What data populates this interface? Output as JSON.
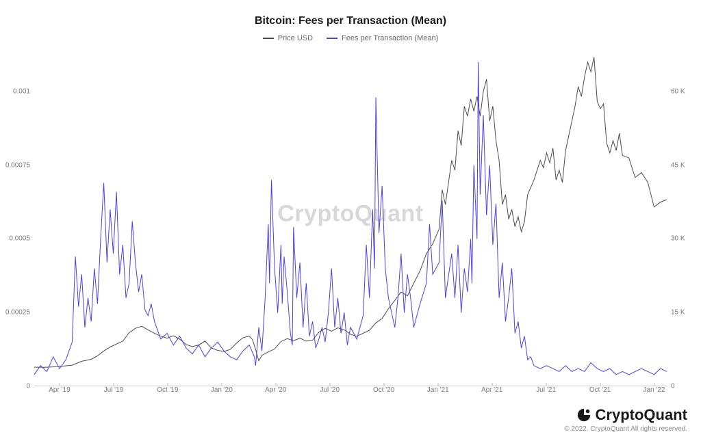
{
  "title": {
    "text": "Bitcoin: Fees per Transaction (Mean)",
    "fontsize": 16,
    "color": "#1a1a1a"
  },
  "watermark": {
    "text": "CryptoQuant",
    "color": "#d8d8d8",
    "fontsize": 34
  },
  "legend": {
    "items": [
      {
        "label": "Price USD",
        "color": "#4a4a4a"
      },
      {
        "label": "Fees per Transaction (Mean)",
        "color": "#4a3fe8"
      }
    ],
    "fontsize": 11
  },
  "chart": {
    "type": "line",
    "background_color": "#ffffff",
    "grid_color": "#eeeeee",
    "axis_color": "#cccccc",
    "tick_fontsize": 10,
    "tick_color": "#777777",
    "x_axis": {
      "labels": [
        "Apr '19",
        "Jul '19",
        "Oct '19",
        "Jan '20",
        "Apr '20",
        "Jul '20",
        "Oct '20",
        "Jan '21",
        "Apr '21",
        "Jul '21",
        "Oct '21",
        "Jan '22"
      ]
    },
    "y_left": {
      "min": 0,
      "max": 0.001125,
      "ticks": [
        0,
        0.00025,
        0.0005,
        0.00075,
        0.001
      ],
      "labels": [
        "0",
        "0.00025",
        "0.0005",
        "0.00075",
        "0.001"
      ]
    },
    "y_right": {
      "min": 0,
      "max": 67500,
      "ticks": [
        0,
        15000,
        30000,
        45000,
        60000
      ],
      "labels": [
        "0",
        "15 K",
        "30 K",
        "45 K",
        "60 K"
      ]
    },
    "series": [
      {
        "name": "price_usd",
        "axis": "right",
        "color": "#4a4a4a",
        "line_width": 1.0,
        "data": [
          [
            0.0,
            3900
          ],
          [
            0.015,
            3850
          ],
          [
            0.03,
            3950
          ],
          [
            0.045,
            4100
          ],
          [
            0.06,
            4300
          ],
          [
            0.075,
            5100
          ],
          [
            0.09,
            5500
          ],
          [
            0.1,
            6200
          ],
          [
            0.11,
            7200
          ],
          [
            0.12,
            8000
          ],
          [
            0.13,
            8600
          ],
          [
            0.14,
            9200
          ],
          [
            0.15,
            10900
          ],
          [
            0.16,
            11800
          ],
          [
            0.17,
            12200
          ],
          [
            0.18,
            11500
          ],
          [
            0.19,
            10800
          ],
          [
            0.2,
            10200
          ],
          [
            0.21,
            9800
          ],
          [
            0.22,
            10300
          ],
          [
            0.23,
            9600
          ],
          [
            0.24,
            8500
          ],
          [
            0.25,
            8100
          ],
          [
            0.26,
            8400
          ],
          [
            0.27,
            9200
          ],
          [
            0.28,
            7800
          ],
          [
            0.29,
            7300
          ],
          [
            0.3,
            7100
          ],
          [
            0.31,
            7500
          ],
          [
            0.32,
            8800
          ],
          [
            0.33,
            9900
          ],
          [
            0.34,
            10200
          ],
          [
            0.345,
            9500
          ],
          [
            0.35,
            7500
          ],
          [
            0.355,
            5200
          ],
          [
            0.36,
            6300
          ],
          [
            0.37,
            7000
          ],
          [
            0.38,
            7600
          ],
          [
            0.39,
            9100
          ],
          [
            0.4,
            9700
          ],
          [
            0.41,
            9300
          ],
          [
            0.42,
            9800
          ],
          [
            0.43,
            9200
          ],
          [
            0.44,
            9400
          ],
          [
            0.45,
            11000
          ],
          [
            0.46,
            11800
          ],
          [
            0.47,
            11200
          ],
          [
            0.48,
            11900
          ],
          [
            0.49,
            11500
          ],
          [
            0.5,
            10600
          ],
          [
            0.51,
            10200
          ],
          [
            0.52,
            10800
          ],
          [
            0.53,
            11400
          ],
          [
            0.54,
            12900
          ],
          [
            0.55,
            13800
          ],
          [
            0.56,
            15800
          ],
          [
            0.57,
            17500
          ],
          [
            0.58,
            19200
          ],
          [
            0.59,
            18400
          ],
          [
            0.6,
            21000
          ],
          [
            0.61,
            23500
          ],
          [
            0.62,
            27000
          ],
          [
            0.63,
            29000
          ],
          [
            0.64,
            32000
          ],
          [
            0.645,
            40000
          ],
          [
            0.65,
            37000
          ],
          [
            0.66,
            46000
          ],
          [
            0.665,
            44000
          ],
          [
            0.67,
            52000
          ],
          [
            0.675,
            49000
          ],
          [
            0.68,
            57000
          ],
          [
            0.685,
            55000
          ],
          [
            0.69,
            58500
          ],
          [
            0.695,
            56000
          ],
          [
            0.7,
            59000
          ],
          [
            0.705,
            55000
          ],
          [
            0.71,
            60000
          ],
          [
            0.715,
            62500
          ],
          [
            0.72,
            54000
          ],
          [
            0.725,
            57000
          ],
          [
            0.73,
            50000
          ],
          [
            0.735,
            46000
          ],
          [
            0.74,
            37000
          ],
          [
            0.745,
            39000
          ],
          [
            0.75,
            34000
          ],
          [
            0.755,
            36000
          ],
          [
            0.76,
            32500
          ],
          [
            0.765,
            34500
          ],
          [
            0.77,
            31500
          ],
          [
            0.775,
            33500
          ],
          [
            0.78,
            39000
          ],
          [
            0.79,
            42000
          ],
          [
            0.8,
            46000
          ],
          [
            0.805,
            44500
          ],
          [
            0.81,
            47500
          ],
          [
            0.815,
            45500
          ],
          [
            0.82,
            48500
          ],
          [
            0.825,
            42000
          ],
          [
            0.83,
            44000
          ],
          [
            0.835,
            41500
          ],
          [
            0.84,
            48000
          ],
          [
            0.85,
            54000
          ],
          [
            0.855,
            57000
          ],
          [
            0.86,
            61000
          ],
          [
            0.865,
            59000
          ],
          [
            0.87,
            63000
          ],
          [
            0.875,
            66000
          ],
          [
            0.88,
            64000
          ],
          [
            0.885,
            67000
          ],
          [
            0.89,
            58000
          ],
          [
            0.895,
            56500
          ],
          [
            0.9,
            57500
          ],
          [
            0.905,
            49500
          ],
          [
            0.91,
            47500
          ],
          [
            0.915,
            50000
          ],
          [
            0.92,
            48000
          ],
          [
            0.925,
            51500
          ],
          [
            0.93,
            47000
          ],
          [
            0.94,
            46500
          ],
          [
            0.95,
            42500
          ],
          [
            0.96,
            43500
          ],
          [
            0.97,
            41500
          ],
          [
            0.98,
            36500
          ],
          [
            0.99,
            37500
          ],
          [
            1.0,
            38000
          ]
        ]
      },
      {
        "name": "fees_mean",
        "axis": "left",
        "color": "#4a3fe8",
        "line_width": 1.0,
        "data": [
          [
            0.0,
            4e-05
          ],
          [
            0.01,
            7e-05
          ],
          [
            0.02,
            5e-05
          ],
          [
            0.03,
            0.0001
          ],
          [
            0.04,
            6e-05
          ],
          [
            0.05,
            9e-05
          ],
          [
            0.06,
            0.00015
          ],
          [
            0.065,
            0.00044
          ],
          [
            0.07,
            0.00027
          ],
          [
            0.075,
            0.00038
          ],
          [
            0.08,
            0.0002
          ],
          [
            0.085,
            0.0003
          ],
          [
            0.09,
            0.00022
          ],
          [
            0.095,
            0.0004
          ],
          [
            0.1,
            0.00028
          ],
          [
            0.105,
            0.0005
          ],
          [
            0.11,
            0.00069
          ],
          [
            0.115,
            0.00042
          ],
          [
            0.12,
            0.0006
          ],
          [
            0.125,
            0.00045
          ],
          [
            0.13,
            0.00066
          ],
          [
            0.135,
            0.00038
          ],
          [
            0.14,
            0.00048
          ],
          [
            0.145,
            0.0003
          ],
          [
            0.15,
            0.00035
          ],
          [
            0.155,
            0.00056
          ],
          [
            0.16,
            0.00042
          ],
          [
            0.165,
            0.00032
          ],
          [
            0.17,
            0.00038
          ],
          [
            0.175,
            0.00026
          ],
          [
            0.18,
            0.00024
          ],
          [
            0.185,
            0.00028
          ],
          [
            0.19,
            0.00022
          ],
          [
            0.195,
            0.00019
          ],
          [
            0.2,
            0.00016
          ],
          [
            0.21,
            0.00018
          ],
          [
            0.22,
            0.00014
          ],
          [
            0.23,
            0.00017
          ],
          [
            0.24,
            0.00013
          ],
          [
            0.25,
            0.00011
          ],
          [
            0.26,
            0.00014
          ],
          [
            0.27,
            0.0001
          ],
          [
            0.28,
            0.00013
          ],
          [
            0.29,
            0.00015
          ],
          [
            0.3,
            0.00012
          ],
          [
            0.31,
            0.0001
          ],
          [
            0.32,
            9e-05
          ],
          [
            0.33,
            0.00012
          ],
          [
            0.34,
            0.00014
          ],
          [
            0.348,
            0.0001
          ],
          [
            0.35,
            7e-05
          ],
          [
            0.355,
            0.0002
          ],
          [
            0.36,
            0.00012
          ],
          [
            0.365,
            0.0003
          ],
          [
            0.37,
            0.00055
          ],
          [
            0.372,
            0.00035
          ],
          [
            0.375,
            0.0007
          ],
          [
            0.38,
            0.0004
          ],
          [
            0.385,
            0.00025
          ],
          [
            0.39,
            0.00048
          ],
          [
            0.392,
            0.00028
          ],
          [
            0.395,
            0.00044
          ],
          [
            0.4,
            0.00032
          ],
          [
            0.405,
            0.00018
          ],
          [
            0.408,
            0.00014
          ],
          [
            0.41,
            0.00054
          ],
          [
            0.415,
            0.0003
          ],
          [
            0.42,
            0.00042
          ],
          [
            0.425,
            0.0002
          ],
          [
            0.43,
            0.00035
          ],
          [
            0.435,
            0.00017
          ],
          [
            0.44,
            0.00022
          ],
          [
            0.445,
            0.00013
          ],
          [
            0.45,
            0.00016
          ],
          [
            0.455,
            0.0002
          ],
          [
            0.46,
            0.00015
          ],
          [
            0.465,
            0.00025
          ],
          [
            0.47,
            0.0004
          ],
          [
            0.475,
            0.0002
          ],
          [
            0.48,
            0.0003
          ],
          [
            0.485,
            0.00018
          ],
          [
            0.49,
            0.00025
          ],
          [
            0.495,
            0.00014
          ],
          [
            0.5,
            0.0002
          ],
          [
            0.51,
            0.00016
          ],
          [
            0.52,
            0.00024
          ],
          [
            0.525,
            0.00048
          ],
          [
            0.53,
            0.0003
          ],
          [
            0.535,
            0.0006
          ],
          [
            0.538,
            0.0004
          ],
          [
            0.54,
            0.00098
          ],
          [
            0.545,
            0.00052
          ],
          [
            0.55,
            0.00068
          ],
          [
            0.555,
            0.0004
          ],
          [
            0.56,
            0.0003
          ],
          [
            0.57,
            0.0002
          ],
          [
            0.575,
            0.0003
          ],
          [
            0.58,
            0.00045
          ],
          [
            0.585,
            0.00025
          ],
          [
            0.59,
            0.00038
          ],
          [
            0.595,
            0.0003
          ],
          [
            0.6,
            0.0002
          ],
          [
            0.61,
            0.00028
          ],
          [
            0.62,
            0.00035
          ],
          [
            0.625,
            0.00055
          ],
          [
            0.63,
            0.00038
          ],
          [
            0.64,
            0.00042
          ],
          [
            0.645,
            0.00063
          ],
          [
            0.65,
            0.0003
          ],
          [
            0.66,
            0.00045
          ],
          [
            0.665,
            0.0003
          ],
          [
            0.67,
            0.00048
          ],
          [
            0.675,
            0.00025
          ],
          [
            0.68,
            0.0004
          ],
          [
            0.685,
            0.00032
          ],
          [
            0.69,
            0.0005
          ],
          [
            0.692,
            0.00035
          ],
          [
            0.695,
            0.00075
          ],
          [
            0.7,
            0.0005
          ],
          [
            0.702,
            0.0011
          ],
          [
            0.705,
            0.00065
          ],
          [
            0.71,
            0.00092
          ],
          [
            0.715,
            0.00058
          ],
          [
            0.72,
            0.00075
          ],
          [
            0.725,
            0.00048
          ],
          [
            0.73,
            0.00062
          ],
          [
            0.735,
            0.0003
          ],
          [
            0.74,
            0.00042
          ],
          [
            0.745,
            0.00022
          ],
          [
            0.75,
            0.0003
          ],
          [
            0.755,
            0.0004
          ],
          [
            0.76,
            0.00018
          ],
          [
            0.765,
            0.00022
          ],
          [
            0.77,
            0.00013
          ],
          [
            0.775,
            0.00017
          ],
          [
            0.78,
            9e-05
          ],
          [
            0.785,
            0.0001
          ],
          [
            0.79,
            7e-05
          ],
          [
            0.8,
            6e-05
          ],
          [
            0.81,
            7e-05
          ],
          [
            0.82,
            6e-05
          ],
          [
            0.83,
            5e-05
          ],
          [
            0.84,
            7e-05
          ],
          [
            0.85,
            5e-05
          ],
          [
            0.86,
            6e-05
          ],
          [
            0.87,
            5e-05
          ],
          [
            0.88,
            8e-05
          ],
          [
            0.89,
            6e-05
          ],
          [
            0.9,
            5e-05
          ],
          [
            0.91,
            6e-05
          ],
          [
            0.92,
            4e-05
          ],
          [
            0.93,
            5e-05
          ],
          [
            0.94,
            4e-05
          ],
          [
            0.95,
            5e-05
          ],
          [
            0.96,
            6e-05
          ],
          [
            0.97,
            5e-05
          ],
          [
            0.98,
            4e-05
          ],
          [
            0.99,
            6e-05
          ],
          [
            1.0,
            5e-05
          ]
        ]
      }
    ]
  },
  "footer": {
    "brand": "CryptoQuant",
    "copyright": "© 2022. CryptoQuant All rights reserved."
  }
}
